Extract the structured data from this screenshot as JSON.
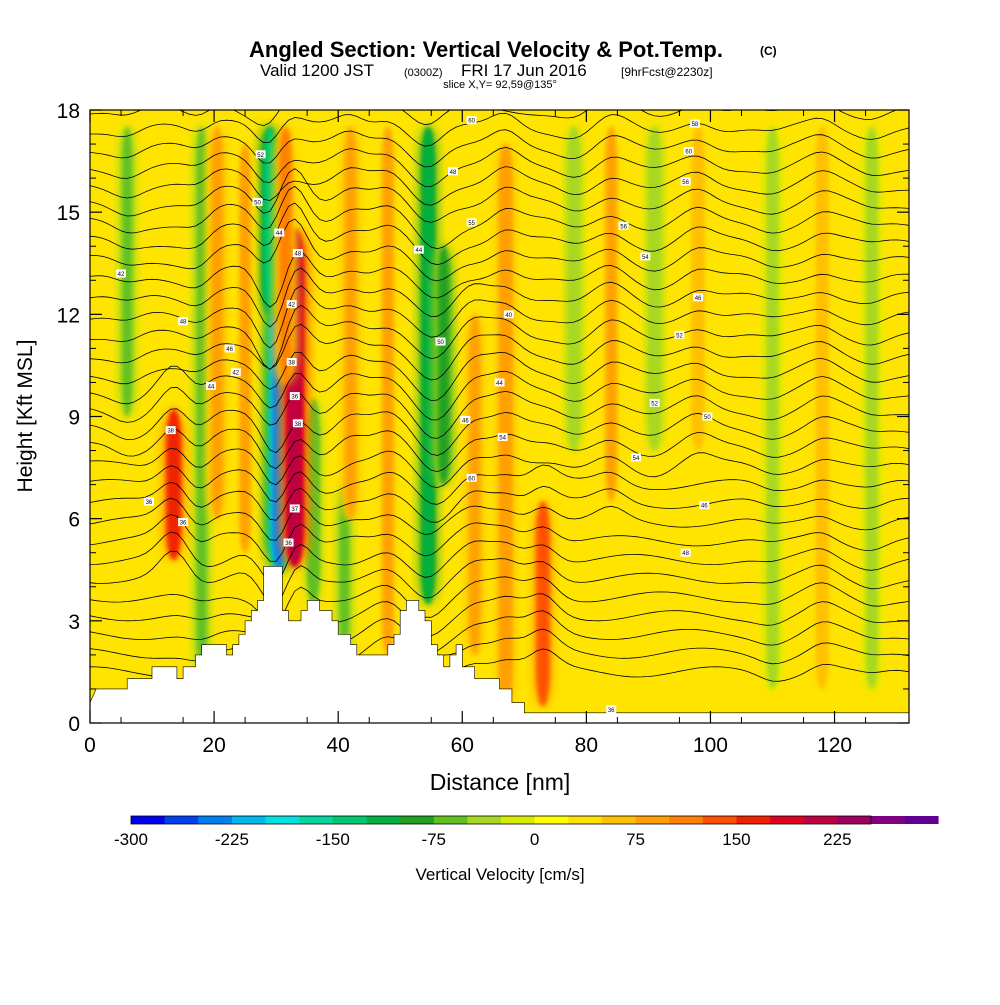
{
  "header": {
    "title": "Angled Section: Vertical Velocity & Pot.Temp.",
    "copyright": "(C)",
    "valid_prefix": "Valid 1200 JST",
    "valid_utc": "(0300Z)",
    "valid_date": "FRI 17 Jun 2016",
    "forecast": "[9hrFcst@2230z]",
    "slice": "slice X,Y= 92,59@135°"
  },
  "chart_data": {
    "type": "heatmap",
    "xlabel": "Distance [nm]",
    "ylabel": "Height [Kft MSL]",
    "xlim": [
      0,
      132
    ],
    "ylim": [
      0,
      18
    ],
    "x_ticks": [
      0,
      20,
      40,
      60,
      80,
      100,
      120
    ],
    "y_ticks": [
      0,
      3,
      6,
      9,
      12,
      15,
      18
    ],
    "x_tick_labels": [
      "0",
      "20",
      "40",
      "60",
      "80",
      "100",
      "120"
    ],
    "y_tick_labels": [
      "0",
      "3",
      "6",
      "9",
      "12",
      "15",
      "18"
    ],
    "colorbar": {
      "label": "Vertical Velocity [cm/s]",
      "min": -300,
      "max": 250,
      "step": 25,
      "tick_values": [
        -300,
        -225,
        -150,
        -75,
        0,
        75,
        150,
        225
      ],
      "tick_labels": [
        "-300",
        "-225",
        "-150",
        "-75",
        "0",
        "75",
        "150",
        "225"
      ],
      "colors": [
        "#0000f0",
        "#0040f0",
        "#0080f0",
        "#00b8f0",
        "#00e0e0",
        "#00d8a0",
        "#00c870",
        "#00b040",
        "#20a020",
        "#60c020",
        "#a8d820",
        "#d8ec00",
        "#ffff00",
        "#ffe000",
        "#ffc000",
        "#ffa000",
        "#ff8000",
        "#ff5000",
        "#f02000",
        "#e00020",
        "#c00040",
        "#a00060",
        "#800080",
        "#600090"
      ]
    },
    "terrain_profile": [
      [
        0,
        0.6
      ],
      [
        1,
        1
      ],
      [
        6,
        1
      ],
      [
        6,
        1.3
      ],
      [
        10,
        1.3
      ],
      [
        10,
        1.65
      ],
      [
        14,
        1.65
      ],
      [
        14,
        1.3
      ],
      [
        15,
        1.3
      ],
      [
        15,
        1.65
      ],
      [
        17,
        1.65
      ],
      [
        17,
        2
      ],
      [
        18,
        2
      ],
      [
        18,
        2.3
      ],
      [
        22,
        2.3
      ],
      [
        22,
        2
      ],
      [
        23,
        2
      ],
      [
        23,
        2.3
      ],
      [
        24,
        2.3
      ],
      [
        24,
        2.6
      ],
      [
        25,
        2.6
      ],
      [
        25,
        3
      ],
      [
        26,
        3
      ],
      [
        26,
        3.3
      ],
      [
        27,
        3.3
      ],
      [
        27,
        3.6
      ],
      [
        28,
        3.6
      ],
      [
        28,
        4.6
      ],
      [
        31,
        4.6
      ],
      [
        31,
        3.3
      ],
      [
        32,
        3.3
      ],
      [
        32,
        3
      ],
      [
        34,
        3
      ],
      [
        34,
        3.3
      ],
      [
        35,
        3.3
      ],
      [
        35,
        3.6
      ],
      [
        37,
        3.6
      ],
      [
        37,
        3.3
      ],
      [
        39,
        3.3
      ],
      [
        39,
        3
      ],
      [
        40,
        3
      ],
      [
        40,
        2.6
      ],
      [
        42,
        2.6
      ],
      [
        42,
        2.3
      ],
      [
        43,
        2.3
      ],
      [
        43,
        2
      ],
      [
        48,
        2
      ],
      [
        48,
        2.3
      ],
      [
        49,
        2.3
      ],
      [
        49,
        2.6
      ],
      [
        50,
        2.6
      ],
      [
        50,
        3.3
      ],
      [
        51,
        3.3
      ],
      [
        51,
        3.6
      ],
      [
        53,
        3.6
      ],
      [
        53,
        3.3
      ],
      [
        54,
        3.3
      ],
      [
        54,
        3
      ],
      [
        55,
        3
      ],
      [
        55,
        2.3
      ],
      [
        56,
        2.3
      ],
      [
        56,
        2
      ],
      [
        57,
        2
      ],
      [
        57,
        1.65
      ],
      [
        58,
        1.65
      ],
      [
        58,
        2
      ],
      [
        59,
        2
      ],
      [
        59,
        2.3
      ],
      [
        60,
        2.3
      ],
      [
        60,
        1.65
      ],
      [
        62,
        1.65
      ],
      [
        62,
        1.3
      ],
      [
        66,
        1.3
      ],
      [
        66,
        1
      ],
      [
        68,
        1
      ],
      [
        68,
        0.6
      ],
      [
        70,
        0.6
      ],
      [
        70,
        0.3
      ],
      [
        132,
        0.3
      ]
    ],
    "updrafts": [
      {
        "x": 13.5,
        "z0": 4.8,
        "z1": 9.2,
        "w": 165
      },
      {
        "x": 33,
        "z0": 4.6,
        "z1": 14.5,
        "w": 220
      },
      {
        "x": 31.5,
        "z0": 10,
        "z1": 17.5,
        "w": 110
      },
      {
        "x": 20.5,
        "z0": 6,
        "z1": 17.5,
        "w": 90
      },
      {
        "x": 25,
        "z0": 5,
        "z1": 17,
        "w": 75
      },
      {
        "x": 42,
        "z0": 6,
        "z1": 17.5,
        "w": 85
      },
      {
        "x": 48,
        "z0": 2,
        "z1": 17.5,
        "w": 80
      },
      {
        "x": 62,
        "z0": 2,
        "z1": 12,
        "w": 85
      },
      {
        "x": 67,
        "z0": 0.5,
        "z1": 17,
        "w": 95
      },
      {
        "x": 73,
        "z0": 0.5,
        "z1": 6.5,
        "w": 130
      },
      {
        "x": 84,
        "z0": 6.5,
        "z1": 17.5,
        "w": 75
      },
      {
        "x": 98,
        "z0": 8,
        "z1": 17.5,
        "w": 70
      },
      {
        "x": 118,
        "z0": 1,
        "z1": 17.5,
        "w": 65
      }
    ],
    "downdrafts": [
      {
        "x": 30.5,
        "z0": 4.5,
        "z1": 12.5,
        "w": -250
      },
      {
        "x": 29,
        "z0": 12,
        "z1": 17.5,
        "w": -150
      },
      {
        "x": 54.5,
        "z0": 3.5,
        "z1": 17.5,
        "w": -110
      },
      {
        "x": 57,
        "z0": 7,
        "z1": 14,
        "w": -90
      },
      {
        "x": 36,
        "z0": 3.5,
        "z1": 9.5,
        "w": -70
      },
      {
        "x": 18,
        "z0": 1.5,
        "z1": 17.5,
        "w": -60
      },
      {
        "x": 6,
        "z0": 9,
        "z1": 17.5,
        "w": -55
      },
      {
        "x": 41,
        "z0": 2,
        "z1": 7,
        "w": -55
      },
      {
        "x": 78,
        "z0": 8,
        "z1": 17.5,
        "w": -45
      },
      {
        "x": 91,
        "z0": 8,
        "z1": 17.5,
        "w": -45
      },
      {
        "x": 110,
        "z0": 1,
        "z1": 17.5,
        "w": -40
      },
      {
        "x": 126,
        "z0": 1,
        "z1": 17.5,
        "w": -40
      }
    ],
    "isentrope_labels": [
      {
        "x": 5,
        "z": 13.2,
        "t": "42"
      },
      {
        "x": 9.5,
        "z": 6.5,
        "t": "36"
      },
      {
        "x": 13,
        "z": 8.6,
        "t": "38"
      },
      {
        "x": 15,
        "z": 5.9,
        "t": "36"
      },
      {
        "x": 15,
        "z": 11.8,
        "t": "48"
      },
      {
        "x": 19.5,
        "z": 9.9,
        "t": "44"
      },
      {
        "x": 22.5,
        "z": 11,
        "t": "46"
      },
      {
        "x": 23.5,
        "z": 10.3,
        "t": "42"
      },
      {
        "x": 27,
        "z": 15.3,
        "t": "50"
      },
      {
        "x": 27.5,
        "z": 16.7,
        "t": "52"
      },
      {
        "x": 30.5,
        "z": 14.4,
        "t": "44"
      },
      {
        "x": 32.5,
        "z": 12.3,
        "t": "42"
      },
      {
        "x": 32.5,
        "z": 10.6,
        "t": "38"
      },
      {
        "x": 33,
        "z": 9.6,
        "t": "36"
      },
      {
        "x": 33.5,
        "z": 8.8,
        "t": "38"
      },
      {
        "x": 33,
        "z": 6.3,
        "t": "37"
      },
      {
        "x": 32,
        "z": 5.3,
        "t": "36"
      },
      {
        "x": 33.5,
        "z": 13.8,
        "t": "48"
      },
      {
        "x": 53,
        "z": 13.9,
        "t": "44"
      },
      {
        "x": 56.5,
        "z": 11.2,
        "t": "50"
      },
      {
        "x": 58.5,
        "z": 16.2,
        "t": "48"
      },
      {
        "x": 61.5,
        "z": 14.7,
        "t": "55"
      },
      {
        "x": 61.5,
        "z": 17.7,
        "t": "60"
      },
      {
        "x": 60.5,
        "z": 8.9,
        "t": "46"
      },
      {
        "x": 61.5,
        "z": 7.2,
        "t": "60"
      },
      {
        "x": 66.5,
        "z": 8.4,
        "t": "54"
      },
      {
        "x": 66,
        "z": 10,
        "t": "44"
      },
      {
        "x": 67.5,
        "z": 12,
        "t": "40"
      },
      {
        "x": 84,
        "z": 0.4,
        "t": "36"
      },
      {
        "x": 86,
        "z": 14.6,
        "t": "56"
      },
      {
        "x": 89.5,
        "z": 13.7,
        "t": "54"
      },
      {
        "x": 91,
        "z": 9.4,
        "t": "52"
      },
      {
        "x": 95,
        "z": 11.4,
        "t": "52"
      },
      {
        "x": 96,
        "z": 5,
        "t": "48"
      },
      {
        "x": 96,
        "z": 15.9,
        "t": "56"
      },
      {
        "x": 96.5,
        "z": 16.8,
        "t": "60"
      },
      {
        "x": 97.5,
        "z": 17.6,
        "t": "58"
      },
      {
        "x": 98,
        "z": 12.5,
        "t": "46"
      },
      {
        "x": 99.5,
        "z": 9,
        "t": "50"
      },
      {
        "x": 99,
        "z": 6.4,
        "t": "46"
      },
      {
        "x": 88,
        "z": 7.8,
        "t": "54"
      }
    ]
  }
}
